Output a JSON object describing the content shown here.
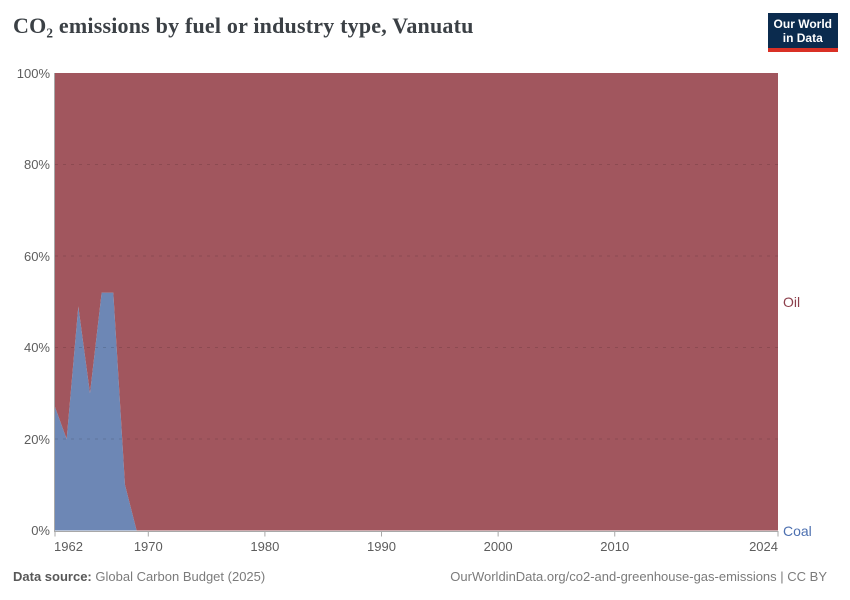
{
  "header": {
    "title": "CO₂ emissions by fuel or industry type, Vanuatu",
    "logo": {
      "line1": "Our World",
      "line2": "in Data",
      "background_color": "#0b2b4e",
      "bar_color": "#d93025"
    }
  },
  "chart_data": {
    "type": "area",
    "stacking": "relative-100-percent",
    "title": "CO₂ emissions by fuel or industry type, Vanuatu",
    "x": [
      1962,
      1963,
      1964,
      1965,
      1966,
      1967,
      1968,
      1969,
      1970,
      2024
    ],
    "series": [
      {
        "name": "Coal",
        "color": "#6d87b5",
        "label_color": "#4d70b0",
        "values": [
          27,
          20,
          49,
          30,
          52,
          52,
          10,
          0,
          0,
          0
        ]
      },
      {
        "name": "Oil",
        "color": "#a1565e",
        "label_color": "#8c3f4b",
        "values": [
          73,
          80,
          51,
          70,
          48,
          48,
          90,
          100,
          100,
          100
        ]
      }
    ],
    "xlim": [
      1962,
      2024
    ],
    "ylim": [
      0,
      100
    ],
    "y_ticks": [
      0,
      20,
      40,
      60,
      80,
      100
    ],
    "y_tick_suffix": "%",
    "x_ticks": [
      1962,
      1970,
      1980,
      1990,
      2000,
      2010,
      2024
    ],
    "grid": "horizontal-dashed",
    "legend_position": "inline-right",
    "axis_text_color": "#5d5d5d",
    "axis_line_color": "#a8a8a8"
  },
  "footer": {
    "source_label": "Data source:",
    "source_value": "Global Carbon Budget (2025)",
    "link": "OurWorldinData.org/co2-and-greenhouse-gas-emissions | CC BY"
  }
}
